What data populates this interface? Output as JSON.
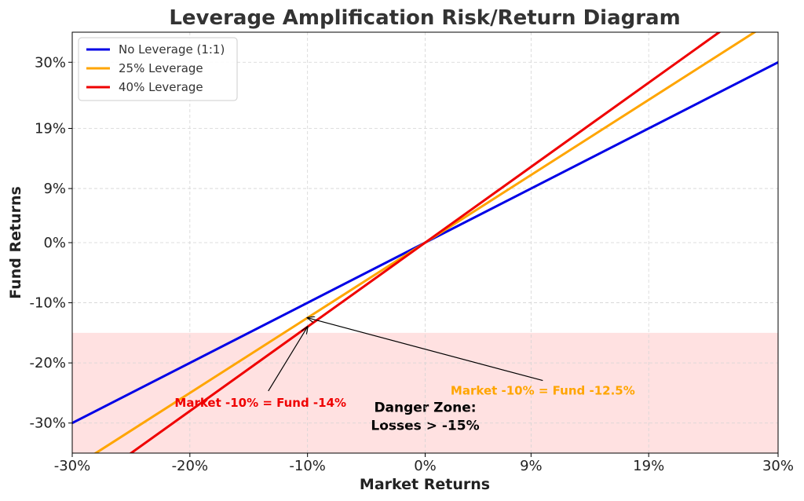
{
  "chart_data": {
    "type": "line",
    "title": "Leverage Amplification Risk/Return Diagram",
    "xlabel": "Market Returns",
    "ylabel": "Fund Returns",
    "xlim": [
      -0.3,
      0.3
    ],
    "ylim": [
      -0.35,
      0.35
    ],
    "x_ticks": [
      -0.3,
      -0.2,
      -0.1,
      0.0,
      0.09,
      0.19,
      0.3
    ],
    "x_tick_labels": [
      "-30%",
      "-20%",
      "-10%",
      "0%",
      "9%",
      "19%",
      "30%"
    ],
    "y_ticks": [
      -0.3,
      -0.2,
      -0.1,
      0.0,
      0.09,
      0.19,
      0.3
    ],
    "y_tick_labels": [
      "-30%",
      "-20%",
      "-10%",
      "0%",
      "9%",
      "19%",
      "30%"
    ],
    "grid": true,
    "legend_position": "top-left",
    "series": [
      {
        "name": "No Leverage (1:1)",
        "color": "#0000e6",
        "x": [
          -0.3,
          0.3
        ],
        "y": [
          -0.3,
          0.3
        ]
      },
      {
        "name": "25% Leverage",
        "color": "#ffa500",
        "x": [
          -0.3,
          0.3
        ],
        "y": [
          -0.375,
          0.375
        ]
      },
      {
        "name": "40% Leverage",
        "color": "#ef0000",
        "x": [
          -0.3,
          0.3
        ],
        "y": [
          -0.42,
          0.42
        ]
      }
    ],
    "danger_zone": {
      "y_from": -0.35,
      "y_to": -0.15,
      "color": "#ffe1e1",
      "label_line1": "Danger Zone:",
      "label_line2": "Losses > -15%",
      "label_x": 0.0,
      "label_y": -0.3
    },
    "annotations": [
      {
        "text": "Market -10% = Fund -14%",
        "color": "#ef0000",
        "point": [
          -0.1,
          -0.14
        ],
        "text_pos": [
          -0.14,
          -0.265
        ]
      },
      {
        "text": "Market -10% = Fund -12.5%",
        "color": "#ffa500",
        "point": [
          -0.1,
          -0.125
        ],
        "text_pos": [
          0.1,
          -0.245
        ]
      }
    ]
  }
}
